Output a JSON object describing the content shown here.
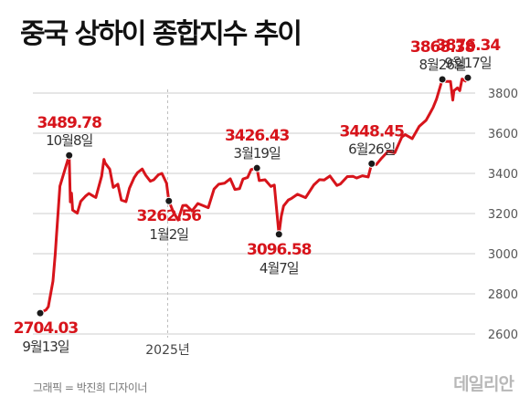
{
  "header": {
    "title": "중국 상하이 종합지수 추이"
  },
  "footer": {
    "credit": "그래픽 = 박진희 디자이너",
    "brand": "데일리안"
  },
  "colors": {
    "line": "#d7141b",
    "value_text": "#d7141b",
    "grid": "#bdbdbd",
    "marker": "#1a1a1a"
  },
  "chart_data": {
    "type": "line",
    "title": "중국 상하이 종합지수 추이",
    "xlabel": "",
    "ylabel": "",
    "ylim": [
      2600,
      3900
    ],
    "yticks": [
      2600,
      2800,
      3000,
      3200,
      3400,
      3600,
      3800
    ],
    "grid": true,
    "xlim": [
      "2024-09-13",
      "2025-09-17"
    ],
    "x_tick_labels": [
      {
        "date": "2025-01-01",
        "label": "2025년"
      }
    ],
    "series": [
      {
        "points": [
          [
            "2024-09-13",
            2704.03
          ],
          [
            "2024-09-18",
            2720
          ],
          [
            "2024-09-20",
            2736
          ],
          [
            "2024-09-24",
            2863
          ],
          [
            "2024-09-26",
            3000
          ],
          [
            "2024-09-27",
            3087
          ],
          [
            "2024-09-30",
            3336
          ],
          [
            "2024-10-08",
            3489.78
          ],
          [
            "2024-10-09",
            3258
          ],
          [
            "2024-10-10",
            3302
          ],
          [
            "2024-10-11",
            3217
          ],
          [
            "2024-10-15",
            3202
          ],
          [
            "2024-10-18",
            3261
          ],
          [
            "2024-10-22",
            3286
          ],
          [
            "2024-10-25",
            3300
          ],
          [
            "2024-10-29",
            3286
          ],
          [
            "2024-10-31",
            3280
          ],
          [
            "2024-11-05",
            3386
          ],
          [
            "2024-11-07",
            3470
          ],
          [
            "2024-11-08",
            3452
          ],
          [
            "2024-11-12",
            3421
          ],
          [
            "2024-11-15",
            3330
          ],
          [
            "2024-11-19",
            3346
          ],
          [
            "2024-11-22",
            3267
          ],
          [
            "2024-11-26",
            3259
          ],
          [
            "2024-11-29",
            3326
          ],
          [
            "2024-12-03",
            3378
          ],
          [
            "2024-12-06",
            3404
          ],
          [
            "2024-12-10",
            3422
          ],
          [
            "2024-12-13",
            3391
          ],
          [
            "2024-12-17",
            3361
          ],
          [
            "2024-12-20",
            3368
          ],
          [
            "2024-12-24",
            3393
          ],
          [
            "2024-12-27",
            3400
          ],
          [
            "2024-12-31",
            3351
          ],
          [
            "2025-01-02",
            3262.56
          ],
          [
            "2025-01-06",
            3206
          ],
          [
            "2025-01-10",
            3168
          ],
          [
            "2025-01-14",
            3240
          ],
          [
            "2025-01-17",
            3241
          ],
          [
            "2025-01-22",
            3213
          ],
          [
            "2025-01-27",
            3250
          ],
          [
            "2025-02-05",
            3229
          ],
          [
            "2025-02-10",
            3322
          ],
          [
            "2025-02-14",
            3346
          ],
          [
            "2025-02-19",
            3351
          ],
          [
            "2025-02-24",
            3373
          ],
          [
            "2025-02-28",
            3320
          ],
          [
            "2025-03-04",
            3324
          ],
          [
            "2025-03-07",
            3372
          ],
          [
            "2025-03-11",
            3380
          ],
          [
            "2025-03-14",
            3419
          ],
          [
            "2025-03-19",
            3426.43
          ],
          [
            "2025-03-21",
            3364
          ],
          [
            "2025-03-26",
            3368
          ],
          [
            "2025-03-31",
            3335
          ],
          [
            "2025-04-03",
            3342
          ],
          [
            "2025-04-07",
            3096.58
          ],
          [
            "2025-04-09",
            3186
          ],
          [
            "2025-04-11",
            3238
          ],
          [
            "2025-04-15",
            3267
          ],
          [
            "2025-04-18",
            3276
          ],
          [
            "2025-04-23",
            3296
          ],
          [
            "2025-04-30",
            3279
          ],
          [
            "2025-05-07",
            3342
          ],
          [
            "2025-05-12",
            3369
          ],
          [
            "2025-05-16",
            3367
          ],
          [
            "2025-05-21",
            3387
          ],
          [
            "2025-05-27",
            3340
          ],
          [
            "2025-05-30",
            3347
          ],
          [
            "2025-06-05",
            3384
          ],
          [
            "2025-06-10",
            3385
          ],
          [
            "2025-06-13",
            3377
          ],
          [
            "2025-06-18",
            3388
          ],
          [
            "2025-06-23",
            3382
          ],
          [
            "2025-06-26",
            3448.45
          ],
          [
            "2025-06-30",
            3444
          ],
          [
            "2025-07-04",
            3472
          ],
          [
            "2025-07-10",
            3509
          ],
          [
            "2025-07-16",
            3503
          ],
          [
            "2025-07-22",
            3581
          ],
          [
            "2025-07-25",
            3593
          ],
          [
            "2025-07-31",
            3573
          ],
          [
            "2025-08-06",
            3634
          ],
          [
            "2025-08-12",
            3665
          ],
          [
            "2025-08-15",
            3696
          ],
          [
            "2025-08-18",
            3728
          ],
          [
            "2025-08-21",
            3771
          ],
          [
            "2025-08-26",
            3868.38
          ],
          [
            "2025-08-29",
            3858
          ],
          [
            "2025-09-02",
            3858
          ],
          [
            "2025-09-04",
            3765
          ],
          [
            "2025-09-05",
            3812
          ],
          [
            "2025-09-08",
            3826
          ],
          [
            "2025-09-10",
            3812
          ],
          [
            "2025-09-12",
            3870
          ],
          [
            "2025-09-15",
            3860
          ],
          [
            "2025-09-17",
            3876.34
          ]
        ]
      }
    ],
    "annotations": [
      {
        "date": "2024-09-13",
        "value": 2704.03,
        "value_label": "2704.03",
        "date_label": "9월13일",
        "pos": "below"
      },
      {
        "date": "2024-10-08",
        "value": 3489.78,
        "value_label": "3489.78",
        "date_label": "10월8일",
        "pos": "above"
      },
      {
        "date": "2025-01-02",
        "value": 3262.56,
        "value_label": "3262.56",
        "date_label": "1월2일",
        "pos": "below"
      },
      {
        "date": "2025-03-19",
        "value": 3426.43,
        "value_label": "3426.43",
        "date_label": "3월19일",
        "pos": "above"
      },
      {
        "date": "2025-04-07",
        "value": 3096.58,
        "value_label": "3096.58",
        "date_label": "4월7일",
        "pos": "below"
      },
      {
        "date": "2025-06-26",
        "value": 3448.45,
        "value_label": "3448.45",
        "date_label": "6월26일",
        "pos": "above"
      },
      {
        "date": "2025-08-26",
        "value": 3868.38,
        "value_label": "3868.38",
        "date_label": "8월26일",
        "pos": "above"
      },
      {
        "date": "2025-09-17",
        "value": 3876.34,
        "value_label": "3876.34",
        "date_label": "9월17일",
        "pos": "above"
      }
    ]
  }
}
